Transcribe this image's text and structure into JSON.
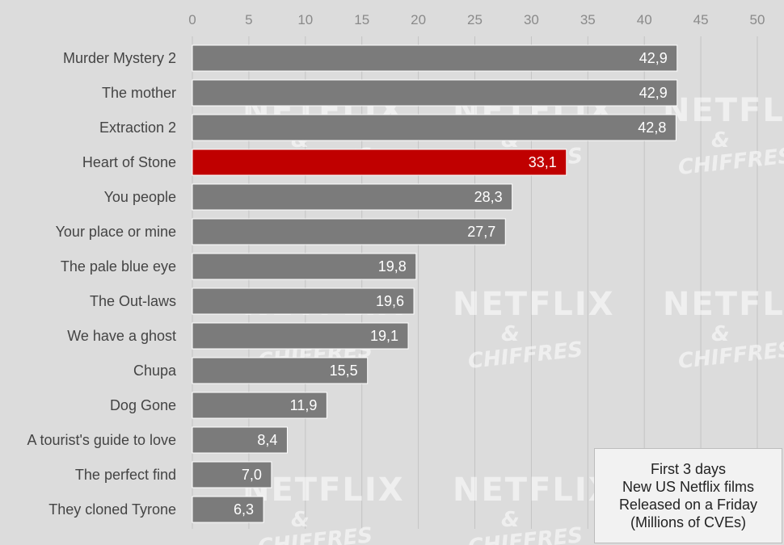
{
  "chart_data": {
    "type": "bar",
    "orientation": "horizontal",
    "categories": [
      "Murder Mystery 2",
      "The mother",
      "Extraction 2",
      "Heart of Stone",
      "You people",
      "Your place or mine",
      "The pale blue eye",
      "The Out-laws",
      "We have a ghost",
      "Chupa",
      "Dog Gone",
      "A tourist's guide to love",
      "The perfect find",
      "They cloned Tyrone"
    ],
    "values": [
      42.9,
      42.9,
      42.8,
      33.1,
      28.3,
      27.7,
      19.8,
      19.6,
      19.1,
      15.5,
      11.9,
      8.4,
      7.0,
      6.3
    ],
    "value_labels": [
      "42,9",
      "42,9",
      "42,8",
      "33,1",
      "28,3",
      "27,7",
      "19,8",
      "19,6",
      "19,1",
      "15,5",
      "11,9",
      "8,4",
      "7,0",
      "6,3"
    ],
    "highlight_index": 3,
    "xlim": [
      0,
      50
    ],
    "x_ticks": [
      0,
      5,
      10,
      15,
      20,
      25,
      30,
      35,
      40,
      45,
      50
    ],
    "x_axis_position": "top",
    "grid": true,
    "legend_placement": "bottom-right",
    "colors": {
      "bar": "#7b7b7b",
      "highlight": "#c00000",
      "background": "#dcdcdc",
      "grid": "#c4c4c4"
    }
  },
  "legend_box": {
    "lines": [
      "First 3 days",
      "New US Netflix films",
      "Released on a Friday",
      "(Millions of CVEs)"
    ]
  },
  "watermark": {
    "line1": "NETFLIX",
    "line2": "&",
    "line3": "CHIFFRES"
  }
}
